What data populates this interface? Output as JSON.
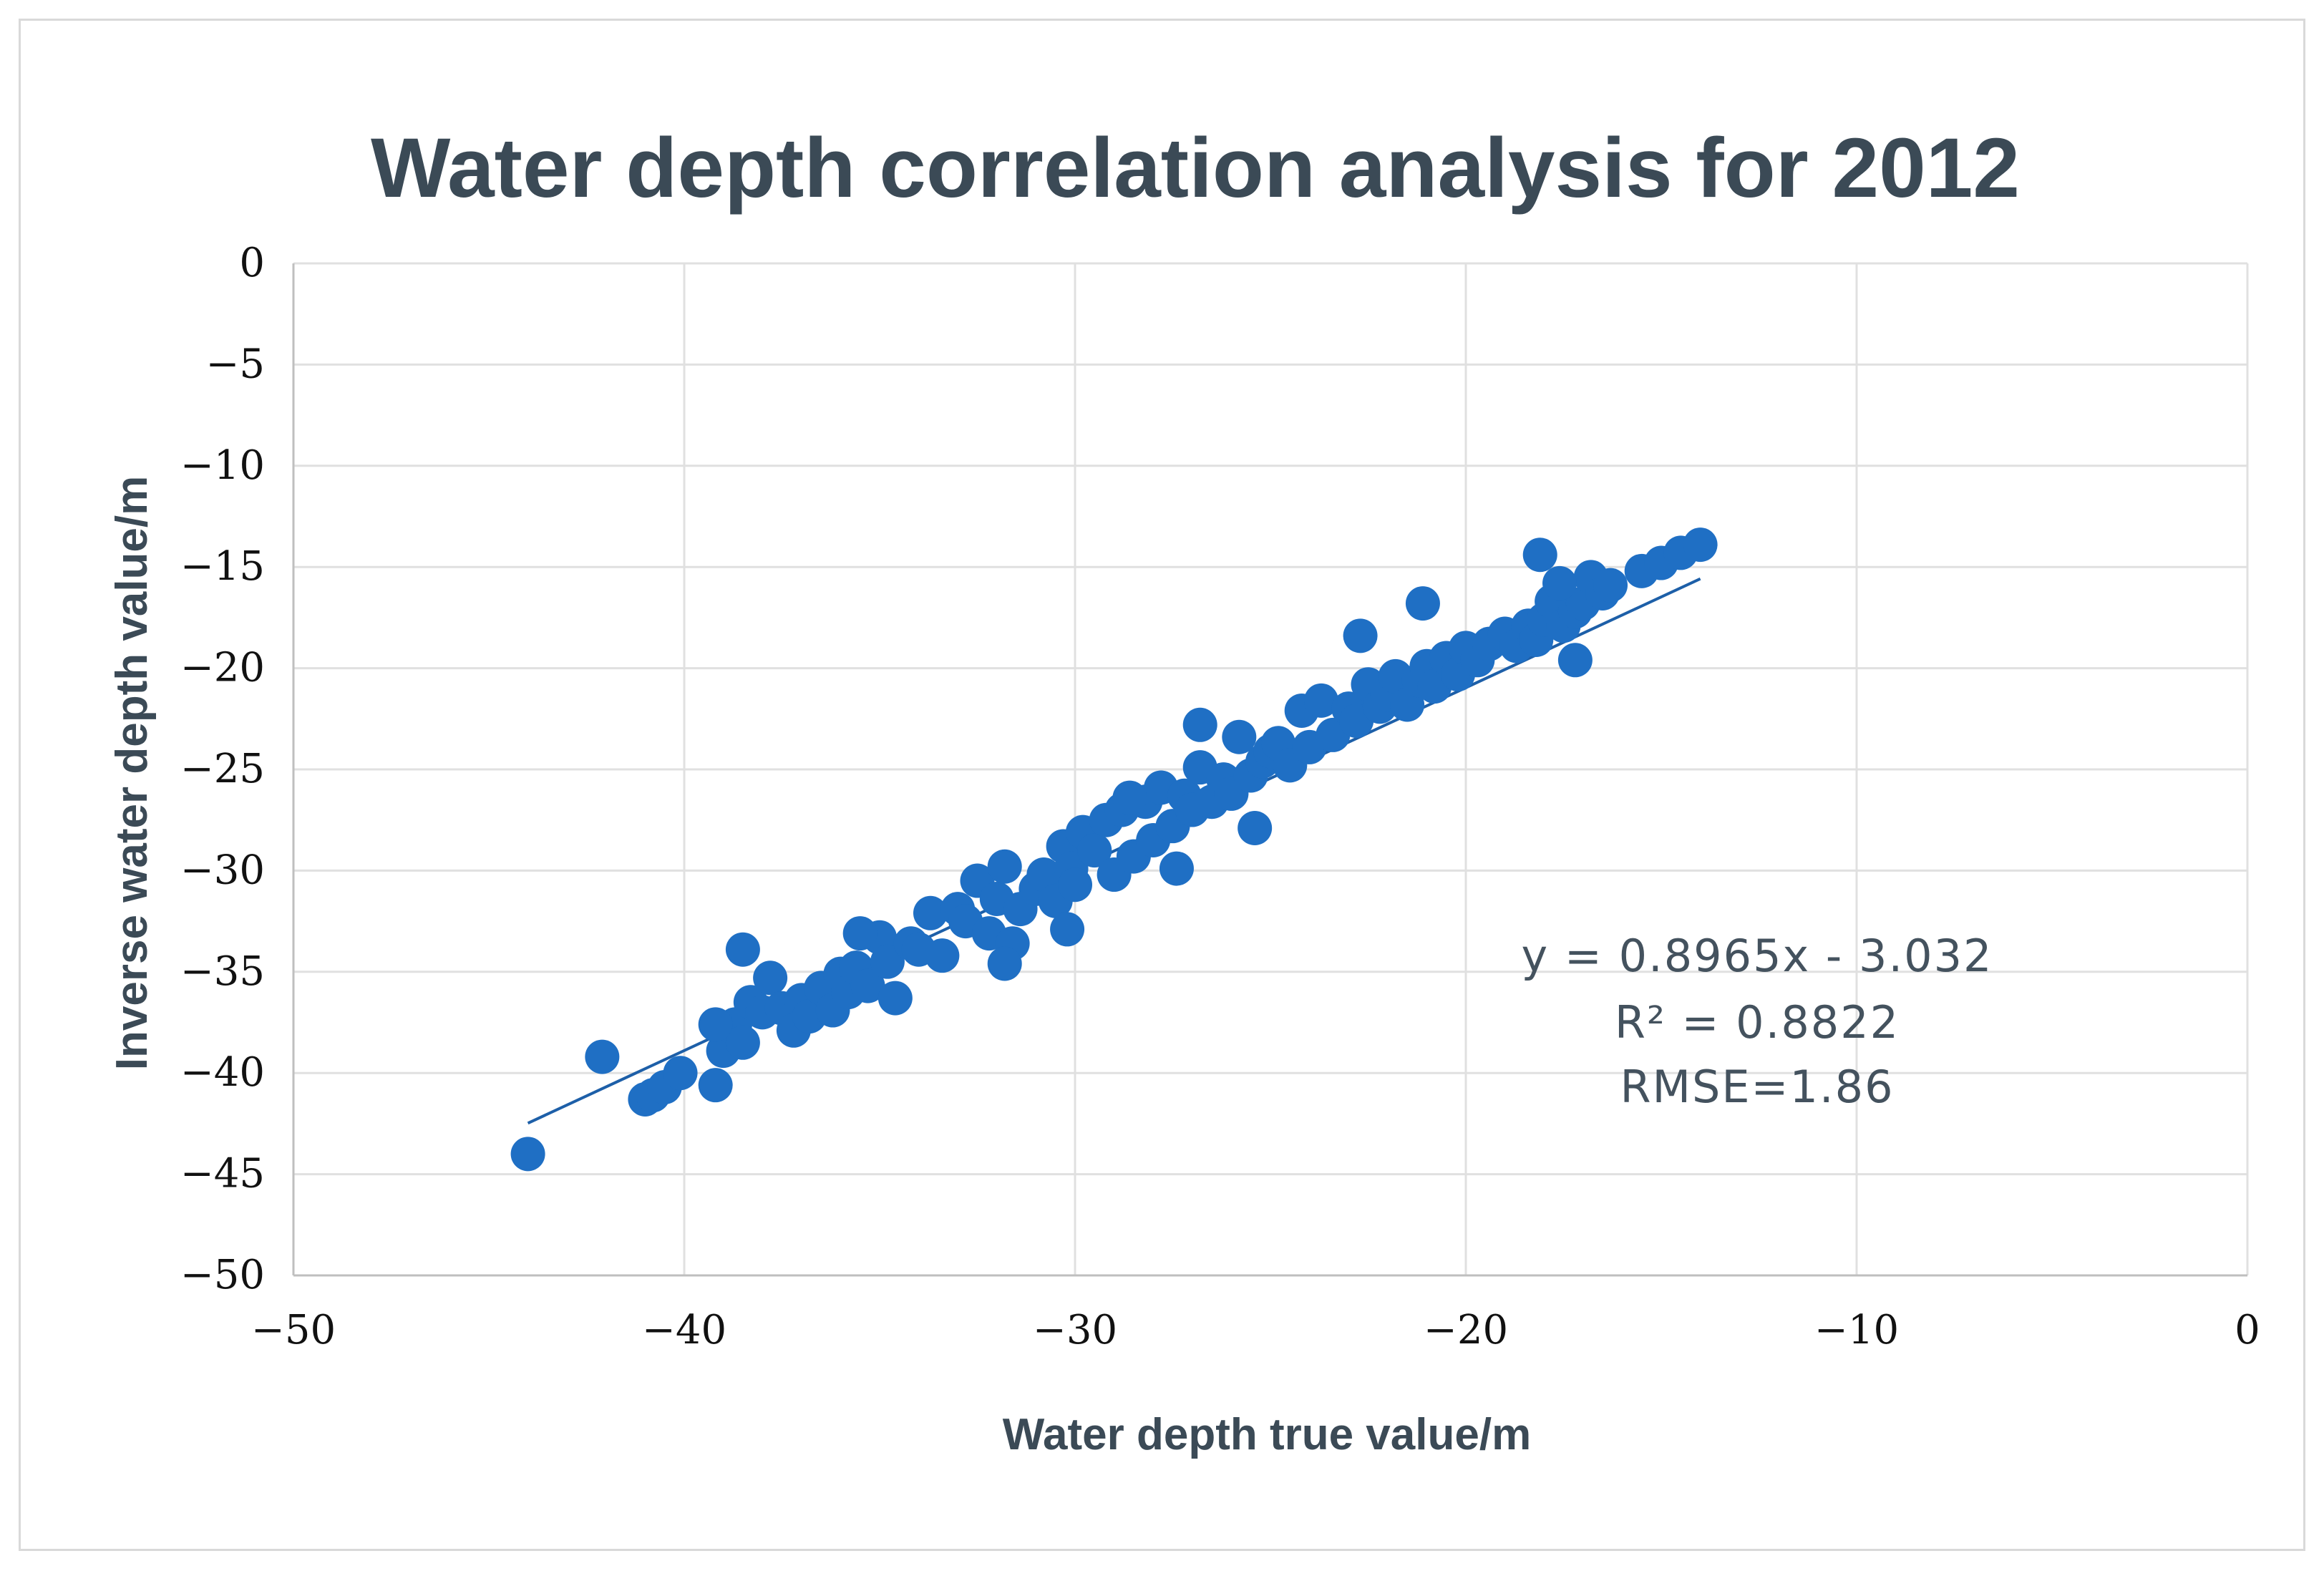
{
  "chart_data": {
    "type": "scatter",
    "title": "Water depth correlation analysis for 2012",
    "xlabel": "Water depth true value/m",
    "ylabel": "Inverse water depth value/m",
    "xlim": [
      -50,
      0
    ],
    "ylim": [
      -50,
      0
    ],
    "x_ticks": [
      -50,
      -40,
      -30,
      -20,
      -10,
      0
    ],
    "x_tick_labels": [
      "−50",
      "−40",
      "−30",
      "−20",
      "−10",
      "0"
    ],
    "y_ticks": [
      0,
      -5,
      -10,
      -15,
      -20,
      -25,
      -30,
      -35,
      -40,
      -45,
      -50
    ],
    "y_tick_labels": [
      "0",
      "−5",
      "−10",
      "−15",
      "−20",
      "−25",
      "−30",
      "−35",
      "−40",
      "−45",
      "−50"
    ],
    "grid": true,
    "point_color": "#1f6fc4",
    "trendline_color": "#1d5fa8",
    "trendline": {
      "slope": 0.8965,
      "intercept": -3.032,
      "x_range": [
        -44.0,
        -14.0
      ]
    },
    "annotations": [
      "y = 0.8965x - 3.032",
      "R² = 0.8822",
      "RMSE=1.86"
    ],
    "series": [
      {
        "name": "Water depth",
        "x": [
          -44.0,
          -42.1,
          -41.0,
          -40.8,
          -40.5,
          -40.1,
          -39.2,
          -39.0,
          -38.7,
          -38.5,
          -38.3,
          -38.0,
          -37.8,
          -37.5,
          -37.2,
          -37.0,
          -36.8,
          -36.5,
          -36.2,
          -36.0,
          -35.8,
          -35.6,
          -35.3,
          -35.0,
          -34.8,
          -34.6,
          -34.2,
          -34.0,
          -33.7,
          -33.4,
          -33.0,
          -32.8,
          -32.5,
          -32.2,
          -32.0,
          -31.8,
          -31.6,
          -31.4,
          -31.0,
          -30.8,
          -30.5,
          -30.3,
          -30.1,
          -30.0,
          -29.8,
          -29.5,
          -29.2,
          -29.0,
          -28.8,
          -28.5,
          -28.2,
          -28.0,
          -27.8,
          -27.5,
          -27.2,
          -27.0,
          -26.8,
          -26.5,
          -26.2,
          -26.0,
          -25.8,
          -25.5,
          -25.2,
          -25.0,
          -24.8,
          -24.5,
          -24.2,
          -24.0,
          -23.7,
          -23.4,
          -23.0,
          -22.8,
          -22.5,
          -22.2,
          -22.0,
          -21.8,
          -21.5,
          -21.2,
          -21.0,
          -20.8,
          -20.5,
          -20.2,
          -20.0,
          -19.7,
          -19.4,
          -19.0,
          -18.7,
          -18.4,
          -18.2,
          -18.0,
          -17.8,
          -17.5,
          -17.2,
          -17.0,
          -16.8,
          -16.5,
          -16.3,
          -15.5,
          -15.0,
          -14.5,
          -14.0,
          -38.5,
          -35.5,
          -31.8,
          -30.2,
          -26.8,
          -22.7,
          -21.1,
          -18.1,
          -17.6,
          -17.2,
          -25.4,
          -28.6,
          -27.4,
          -39.2
        ],
        "y": [
          -44.0,
          -39.2,
          -41.3,
          -41.1,
          -40.7,
          -40.0,
          -40.6,
          -38.9,
          -37.6,
          -38.5,
          -36.5,
          -37.0,
          -35.3,
          -36.8,
          -37.9,
          -36.4,
          -37.2,
          -35.8,
          -36.9,
          -35.1,
          -36.0,
          -34.8,
          -35.7,
          -33.3,
          -34.5,
          -36.3,
          -33.6,
          -33.9,
          -32.1,
          -34.2,
          -31.9,
          -32.5,
          -30.5,
          -33.1,
          -31.4,
          -29.8,
          -33.6,
          -31.9,
          -30.9,
          -30.2,
          -31.5,
          -28.8,
          -29.9,
          -30.7,
          -28.1,
          -29.0,
          -27.5,
          -30.2,
          -27.0,
          -29.3,
          -26.6,
          -28.5,
          -25.9,
          -27.8,
          -26.3,
          -27.0,
          -24.9,
          -26.6,
          -25.5,
          -26.2,
          -23.4,
          -25.3,
          -24.6,
          -24.1,
          -23.7,
          -24.8,
          -22.1,
          -23.9,
          -21.6,
          -23.3,
          -22.0,
          -22.6,
          -20.8,
          -21.9,
          -21.3,
          -20.4,
          -21.8,
          -20.6,
          -19.9,
          -20.9,
          -19.5,
          -20.3,
          -19.0,
          -19.6,
          -18.8,
          -18.3,
          -18.9,
          -17.9,
          -18.6,
          -17.6,
          -16.7,
          -17.9,
          -17.2,
          -16.8,
          -15.5,
          -16.3,
          -15.9,
          -15.2,
          -14.8,
          -14.3,
          -13.9,
          -33.9,
          -33.1,
          -34.6,
          -32.9,
          -22.8,
          -18.4,
          -16.8,
          -14.4,
          -15.8,
          -19.6,
          -27.9,
          -26.4,
          -29.9,
          -37.6
        ]
      }
    ]
  }
}
